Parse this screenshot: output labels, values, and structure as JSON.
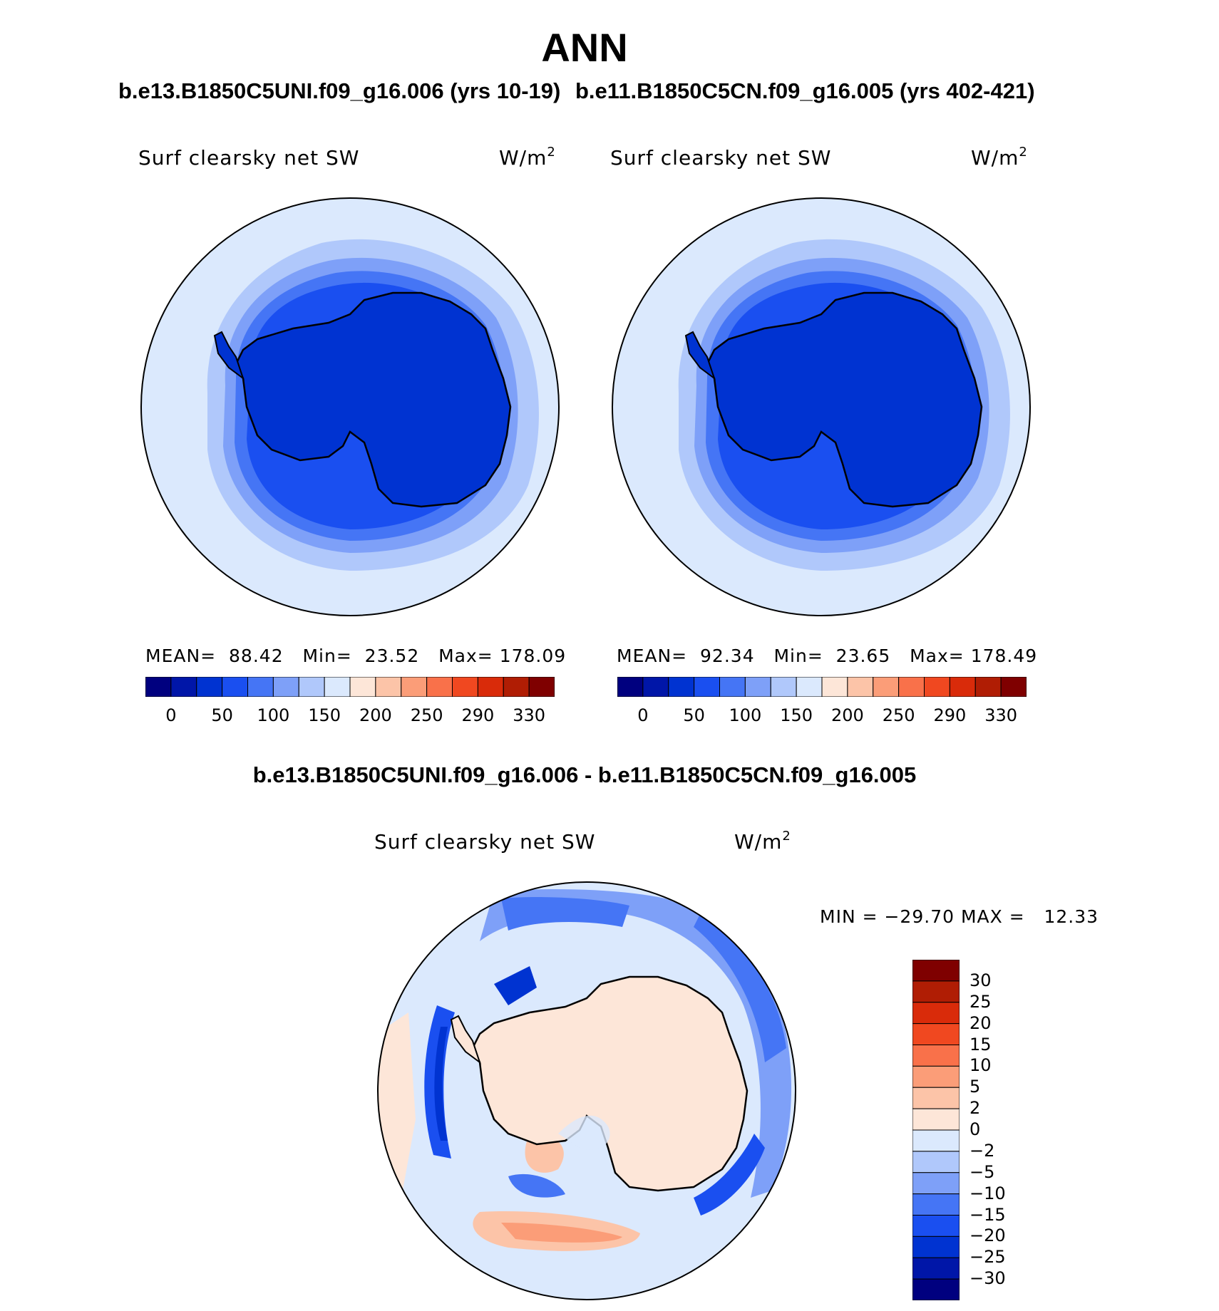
{
  "page_title": "ANN",
  "panels": [
    {
      "case_title": "b.e13.B1850C5UNI.f09_g16.006 (yrs 10-19)",
      "variable": "Surf clearsky net SW",
      "units": "W/m",
      "units_exp": "2",
      "stats": {
        "mean_label": "MEAN=",
        "mean": "88.42",
        "min_label": "Min=",
        "min": "23.52",
        "max_label": "Max=",
        "max": "178.09"
      }
    },
    {
      "case_title": "b.e11.B1850C5CN.f09_g16.005 (yrs 402-421)",
      "variable": "Surf clearsky net SW",
      "units": "W/m",
      "units_exp": "2",
      "stats": {
        "mean_label": "MEAN=",
        "mean": "92.34",
        "min_label": "Min=",
        "min": "23.65",
        "max_label": "Max=",
        "max": "178.49"
      }
    }
  ],
  "diff_panel": {
    "title": "b.e13.B1850C5UNI.f09_g16.006 - b.e11.B1850C5CN.f09_g16.005",
    "variable": "Surf clearsky net SW",
    "units": "W/m",
    "units_exp": "2",
    "min_max_text": "MIN = −29.70 MAX =   12.33"
  },
  "colorbar_abs": {
    "labels": [
      "0",
      "50",
      "100",
      "150",
      "200",
      "250",
      "290",
      "330"
    ],
    "colors": [
      "#00007f",
      "#0016a8",
      "#0033d1",
      "#1a4ff0",
      "#4575f5",
      "#7ea0f8",
      "#b0c8fb",
      "#dbe9fd",
      "#fde6d8",
      "#fcc4a8",
      "#fb9d78",
      "#f9714a",
      "#f04820",
      "#d92b0a",
      "#b01d04",
      "#7f0000"
    ]
  },
  "colorbar_diff": {
    "labels": [
      "30",
      "25",
      "20",
      "15",
      "10",
      "5",
      "2",
      "0",
      "−2",
      "−5",
      "−10",
      "−15",
      "−20",
      "−25",
      "−30"
    ],
    "colors": [
      "#7f0000",
      "#b01d04",
      "#d92b0a",
      "#f04820",
      "#f9714a",
      "#fb9d78",
      "#fcc4a8",
      "#fde6d8",
      "#dbe9fd",
      "#b0c8fb",
      "#7ea0f8",
      "#4575f5",
      "#1a4ff0",
      "#0033d1",
      "#0016a8",
      "#00007f"
    ]
  },
  "colors": {
    "land_abs": "#0033d1",
    "ocean_far": "#dbe9fd",
    "diff_land": "#fde6d8",
    "coast": "#000000"
  }
}
